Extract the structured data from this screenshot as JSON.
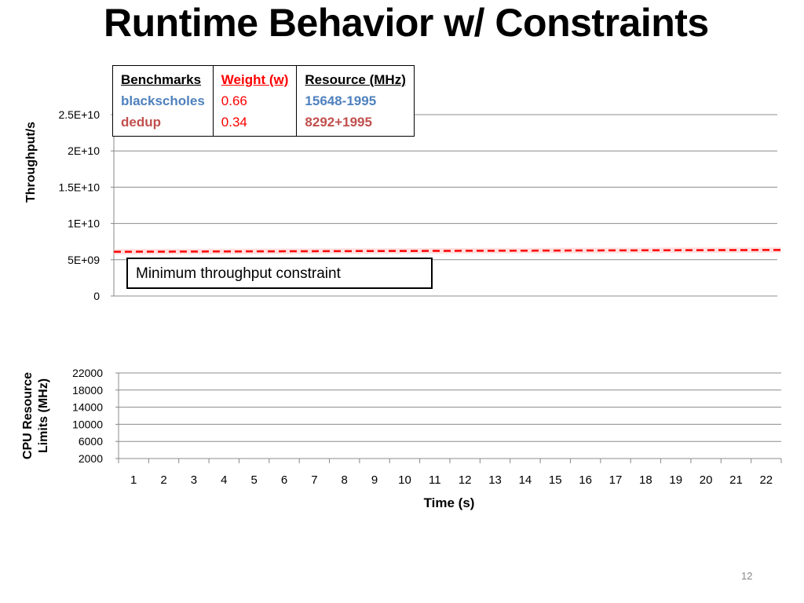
{
  "slide": {
    "title": "Runtime Behavior w/ Constraints",
    "page_number": "12"
  },
  "legend_table": {
    "headers": {
      "benchmarks": "Benchmarks",
      "weight": "Weight (w)",
      "resource": "Resource (MHz)"
    },
    "rows": [
      {
        "benchmark": "blackscholes",
        "weight": "0.66",
        "resource": "15648-1995"
      },
      {
        "benchmark": "dedup",
        "weight": "0.34",
        "resource": "8292+1995"
      }
    ],
    "colors": {
      "header_weight": "#ff0000",
      "blackscholes": "#4f81bd",
      "dedup": "#c0504d",
      "weight_values": "#ff0000",
      "resource_blackscholes": "#4f81bd",
      "resource_dedup": "#c0504d"
    }
  },
  "annotation": {
    "text": "Minimum throughput constraint"
  },
  "chart_data": [
    {
      "type": "line",
      "title": "",
      "xlabel": "",
      "ylabel": "Throughput/s",
      "ylim": [
        0,
        25000000000
      ],
      "y_ticks": [
        0,
        5000000000,
        10000000000,
        15000000000,
        20000000000,
        25000000000
      ],
      "y_tick_labels": [
        "0",
        "5E+09",
        "1E+10",
        "1.5E+10",
        "2E+10",
        "2.5E+10"
      ],
      "grid": true,
      "series": [
        {
          "values": [
            6100000000,
            6350000000
          ],
          "color": "#ff0000",
          "style": "dashed"
        }
      ]
    },
    {
      "type": "line",
      "title": "",
      "xlabel": "Time (s)",
      "ylabel": "CPU Resource Limits (MHz)",
      "ylim": [
        2000,
        22000
      ],
      "y_ticks": [
        2000,
        6000,
        10000,
        14000,
        18000,
        22000
      ],
      "y_tick_labels": [
        "2000",
        "6000",
        "10000",
        "14000",
        "18000",
        "22000"
      ],
      "x": [
        "1",
        "2",
        "3",
        "4",
        "5",
        "6",
        "7",
        "8",
        "9",
        "10",
        "11",
        "12",
        "13",
        "14",
        "15",
        "16",
        "17",
        "18",
        "19",
        "20",
        "21",
        "22"
      ],
      "grid": true,
      "series": []
    }
  ]
}
